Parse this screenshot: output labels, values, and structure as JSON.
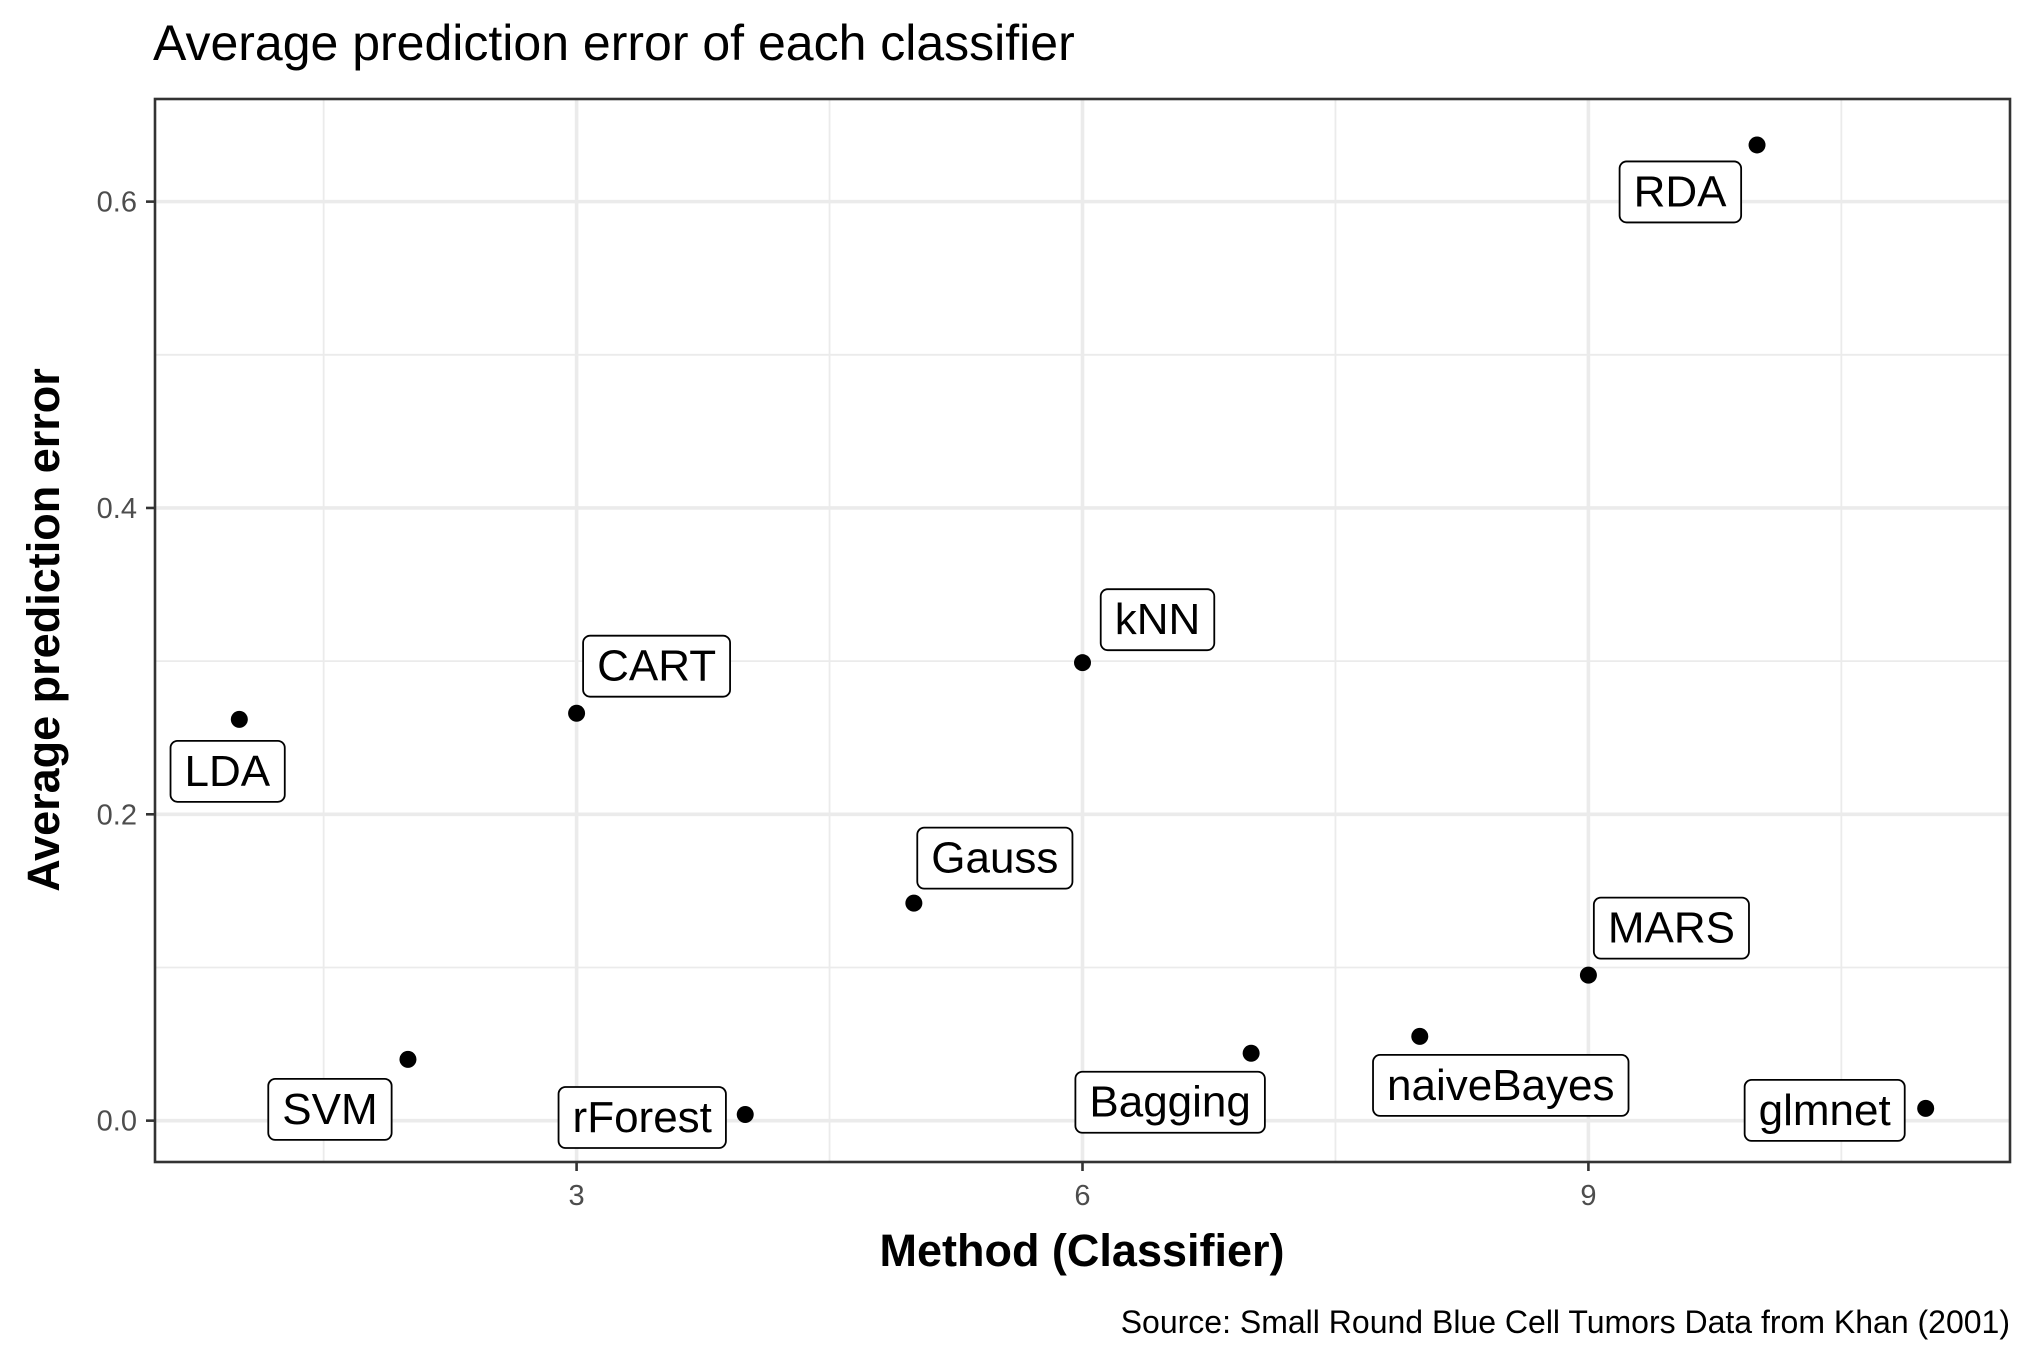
{
  "chart_data": {
    "type": "scatter",
    "title": "Average prediction error of each classifier",
    "xlabel": "Method (Classifier)",
    "ylabel": "Average prediction error",
    "caption": "Source: Small Round Blue Cell Tumors Data from Khan (2001)",
    "xlim": [
      0.5,
      11.5
    ],
    "ylim": [
      -0.027,
      0.667
    ],
    "x_ticks": [
      3,
      6,
      9
    ],
    "x_tick_labels": [
      "3",
      "6",
      "9"
    ],
    "y_ticks": [
      0.0,
      0.2,
      0.4,
      0.6
    ],
    "y_tick_labels": [
      "0.0",
      "0.2",
      "0.4",
      "0.6"
    ],
    "grid": true,
    "points": [
      {
        "x": 1,
        "y": 0.262,
        "label": "LDA"
      },
      {
        "x": 2,
        "y": 0.04,
        "label": "SVM"
      },
      {
        "x": 3,
        "y": 0.266,
        "label": "CART"
      },
      {
        "x": 4,
        "y": 0.004,
        "label": "rForest"
      },
      {
        "x": 5,
        "y": 0.142,
        "label": "Gauss"
      },
      {
        "x": 6,
        "y": 0.299,
        "label": "kNN"
      },
      {
        "x": 7,
        "y": 0.044,
        "label": "Bagging"
      },
      {
        "x": 8,
        "y": 0.055,
        "label": "naiveBayes"
      },
      {
        "x": 9,
        "y": 0.095,
        "label": "MARS"
      },
      {
        "x": 10,
        "y": 0.637,
        "label": "RDA"
      },
      {
        "x": 11,
        "y": 0.008,
        "label": "glmnet"
      }
    ]
  }
}
